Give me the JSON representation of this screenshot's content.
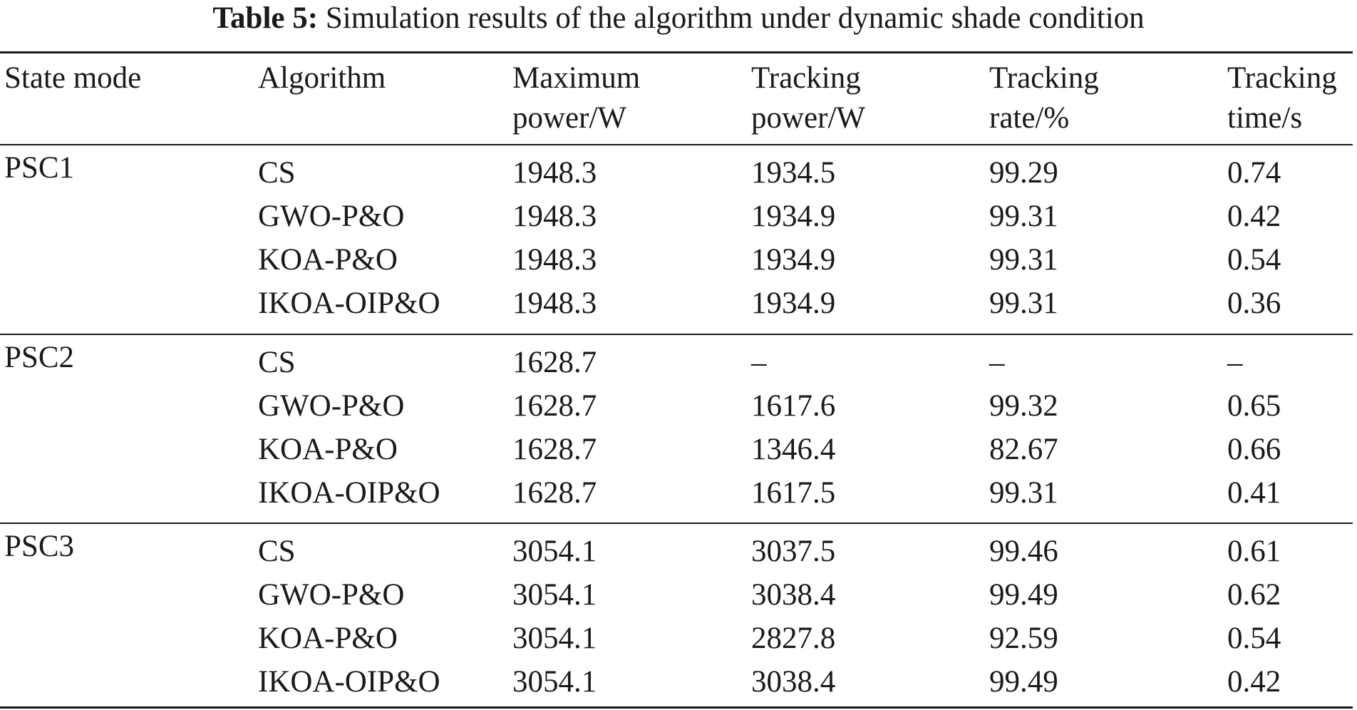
{
  "caption": {
    "label": "Table 5:",
    "text": "Simulation results of the algorithm under dynamic shade condition"
  },
  "table": {
    "headers": [
      [
        "State mode",
        ""
      ],
      [
        "Algorithm",
        ""
      ],
      [
        "Maximum",
        "power/W"
      ],
      [
        "Tracking",
        "power/W"
      ],
      [
        "Tracking",
        "rate/%"
      ],
      [
        "Tracking",
        "time/s"
      ]
    ],
    "groups": [
      {
        "state": "PSC1",
        "rows": [
          [
            "CS",
            "1948.3",
            "1934.5",
            "99.29",
            "0.74"
          ],
          [
            "GWO-P&O",
            "1948.3",
            "1934.9",
            "99.31",
            "0.42"
          ],
          [
            "KOA-P&O",
            "1948.3",
            "1934.9",
            "99.31",
            "0.54"
          ],
          [
            "IKOA-OIP&O",
            "1948.3",
            "1934.9",
            "99.31",
            "0.36"
          ]
        ]
      },
      {
        "state": "PSC2",
        "rows": [
          [
            "CS",
            "1628.7",
            "–",
            "–",
            "–"
          ],
          [
            "GWO-P&O",
            "1628.7",
            "1617.6",
            "99.32",
            "0.65"
          ],
          [
            "KOA-P&O",
            "1628.7",
            "1346.4",
            "82.67",
            "0.66"
          ],
          [
            "IKOA-OIP&O",
            "1628.7",
            "1617.5",
            "99.31",
            "0.41"
          ]
        ]
      },
      {
        "state": "PSC3",
        "rows": [
          [
            "CS",
            "3054.1",
            "3037.5",
            "99.46",
            "0.61"
          ],
          [
            "GWO-P&O",
            "3054.1",
            "3038.4",
            "99.49",
            "0.62"
          ],
          [
            "KOA-P&O",
            "3054.1",
            "2827.8",
            "92.59",
            "0.54"
          ],
          [
            "IKOA-OIP&O",
            "3054.1",
            "3038.4",
            "99.49",
            "0.42"
          ]
        ]
      }
    ]
  }
}
